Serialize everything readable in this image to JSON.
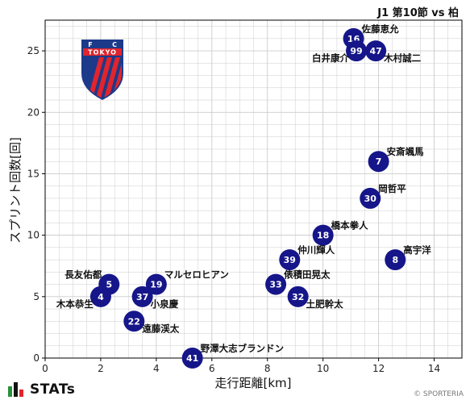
{
  "header": {
    "title": "J1 第10節 vs 柏"
  },
  "footer": {
    "brand": "STATs",
    "copyright": "© SPORTERIA"
  },
  "logo": {
    "letters": [
      "F",
      "C"
    ],
    "word": "TOKYO",
    "colors": {
      "blue": "#1d3a8a",
      "red": "#e2242c"
    }
  },
  "colors": {
    "marker": "#16168a",
    "grid": "#cccccc",
    "axis": "#000000"
  },
  "chart_data": {
    "type": "scatter",
    "xlabel": "走行距離[km]",
    "ylabel": "スプリント回数[回]",
    "xlim": [
      0,
      15
    ],
    "ylim": [
      0,
      27.5
    ],
    "xticks": [
      0,
      2,
      4,
      6,
      8,
      10,
      12,
      14
    ],
    "yticks": [
      0,
      5,
      10,
      15,
      20,
      25
    ],
    "grid": true,
    "points": [
      {
        "num": "16",
        "name": "佐藤恵允",
        "x": 11.1,
        "y": 26,
        "label_pos": "upper-right"
      },
      {
        "num": "99",
        "name": "白井康介",
        "x": 11.2,
        "y": 25,
        "label_pos": "lower-left"
      },
      {
        "num": "47",
        "name": "木村誠二",
        "x": 11.9,
        "y": 25,
        "label_pos": "lower-right"
      },
      {
        "num": "7",
        "name": "安斎颯馬",
        "x": 12.0,
        "y": 16,
        "label_pos": "upper-right"
      },
      {
        "num": "30",
        "name": "岡哲平",
        "x": 11.7,
        "y": 13,
        "label_pos": "upper-right"
      },
      {
        "num": "18",
        "name": "橋本拳人",
        "x": 10.0,
        "y": 10,
        "label_pos": "upper-right"
      },
      {
        "num": "8",
        "name": "高宇洋",
        "x": 12.6,
        "y": 8,
        "label_pos": "upper-right"
      },
      {
        "num": "39",
        "name": "仲川輝人",
        "x": 8.8,
        "y": 8,
        "label_pos": "upper-right"
      },
      {
        "num": "33",
        "name": "俵積田晃太",
        "x": 8.3,
        "y": 6,
        "label_pos": "upper-right"
      },
      {
        "num": "32",
        "name": "土肥幹太",
        "x": 9.1,
        "y": 5,
        "label_pos": "lower-right"
      },
      {
        "num": "5",
        "name": "長友佑都",
        "x": 2.3,
        "y": 6,
        "label_pos": "upper-left"
      },
      {
        "num": "19",
        "name": "マルセロヒアン",
        "x": 4.0,
        "y": 6,
        "label_pos": "upper-right"
      },
      {
        "num": "4",
        "name": "木本恭生",
        "x": 2.0,
        "y": 5,
        "label_pos": "lower-left"
      },
      {
        "num": "37",
        "name": "小泉慶",
        "x": 3.5,
        "y": 5,
        "label_pos": "lower-right"
      },
      {
        "num": "22",
        "name": "遠藤渓太",
        "x": 3.2,
        "y": 3,
        "label_pos": "lower-right"
      },
      {
        "num": "41",
        "name": "野澤大志ブランドン",
        "x": 5.3,
        "y": 0,
        "label_pos": "upper-right"
      }
    ]
  }
}
